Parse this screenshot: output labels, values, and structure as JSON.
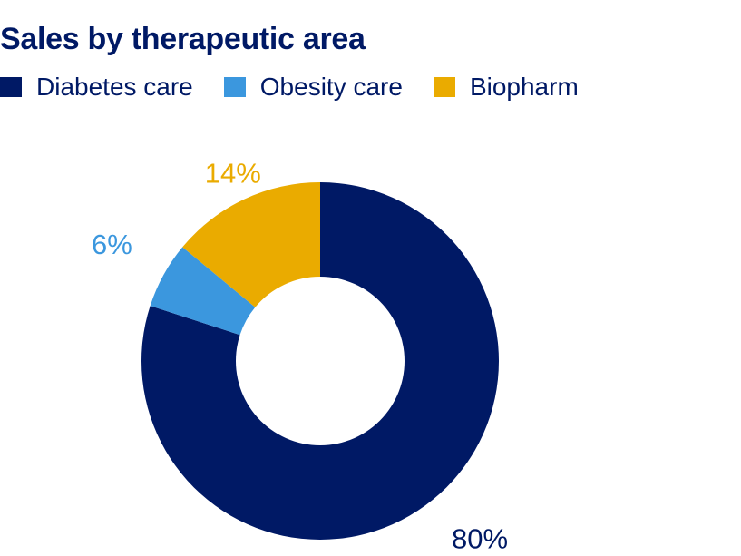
{
  "chart_data": {
    "type": "pie",
    "style": "donut",
    "title": "Sales by therapeutic area",
    "categories": [
      "Diabetes care",
      "Obesity care",
      "Biopharm"
    ],
    "values": [
      80,
      6,
      14
    ],
    "labels": [
      "80%",
      "6%",
      "14%"
    ],
    "colors": [
      "#001965",
      "#3b97de",
      "#eaab00"
    ],
    "start": "12 o'clock, clockwise",
    "legend_position": "top-left"
  }
}
